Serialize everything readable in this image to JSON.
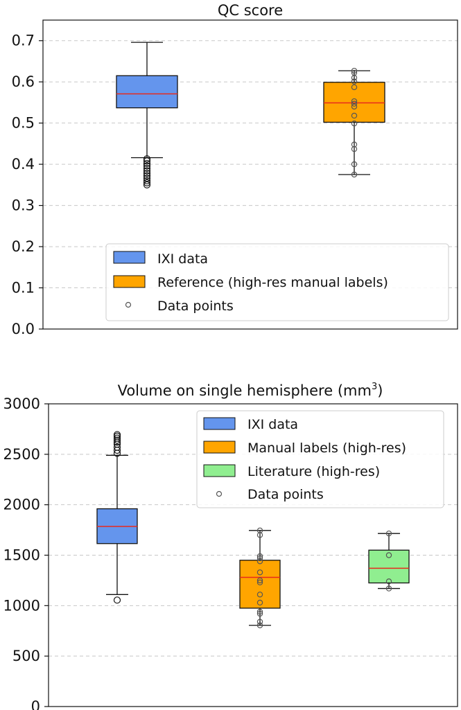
{
  "chart_data": [
    {
      "type": "box",
      "title": "QC score",
      "ylim": [
        0,
        0.75
      ],
      "yticks": [
        0.0,
        0.1,
        0.2,
        0.3,
        0.4,
        0.5,
        0.6,
        0.7
      ],
      "ytick_labels": [
        "0.0",
        "0.1",
        "0.2",
        "0.3",
        "0.4",
        "0.5",
        "0.6",
        "0.7"
      ],
      "grid": "horizontal dashed",
      "legend_position": "lower-center",
      "boxes": [
        {
          "name": "IXI data",
          "color": "#6495ed",
          "q1": 0.537,
          "median": 0.571,
          "q3": 0.615,
          "whisker_low": 0.416,
          "whisker_high": 0.696,
          "outliers": [
            0.35,
            0.355,
            0.36,
            0.366,
            0.372,
            0.378,
            0.384,
            0.39,
            0.396,
            0.402,
            0.408,
            0.413
          ],
          "points": []
        },
        {
          "name": "Reference (high-res manual labels)",
          "color": "#ffa500",
          "q1": 0.502,
          "median": 0.549,
          "q3": 0.599,
          "whisker_low": 0.375,
          "whisker_high": 0.627,
          "outliers": [],
          "points": [
            0.375,
            0.4,
            0.437,
            0.448,
            0.499,
            0.518,
            0.54,
            0.547,
            0.553,
            0.587,
            0.601,
            0.61,
            0.622,
            0.627
          ]
        }
      ],
      "legend": [
        {
          "kind": "box",
          "label": "IXI data",
          "color": "#6495ed"
        },
        {
          "kind": "box",
          "label": "Reference (high-res manual labels)",
          "color": "#ffa500"
        },
        {
          "kind": "point",
          "label": "Data points"
        }
      ]
    },
    {
      "type": "box",
      "title": "Volume on single hemisphere (mm",
      "title_superscript": "3",
      "title_suffix": ")",
      "ylim": [
        0,
        3000
      ],
      "yticks": [
        0,
        500,
        1000,
        1500,
        2000,
        2500,
        3000
      ],
      "ytick_labels": [
        "0",
        "500",
        "1000",
        "1500",
        "2000",
        "2500",
        "3000"
      ],
      "grid": "horizontal dashed",
      "legend_position": "upper-right",
      "boxes": [
        {
          "name": "IXI data",
          "color": "#6495ed",
          "q1": 1615,
          "median": 1785,
          "q3": 1960,
          "whisker_low": 1110,
          "whisker_high": 2490,
          "outliers": [
            1055,
            2510,
            2540,
            2570,
            2600,
            2620,
            2640,
            2660,
            2680,
            2695
          ],
          "points": []
        },
        {
          "name": "Manual labels (high-res)",
          "color": "#ffa500",
          "q1": 975,
          "median": 1280,
          "q3": 1450,
          "whisker_low": 805,
          "whisker_high": 1745,
          "outliers": [],
          "points": [
            805,
            840,
            920,
            940,
            1030,
            1110,
            1230,
            1250,
            1330,
            1440,
            1470,
            1490,
            1700,
            1745
          ]
        },
        {
          "name": "Literature (high-res)",
          "color": "#90ee90",
          "q1": 1225,
          "median": 1370,
          "q3": 1550,
          "whisker_low": 1170,
          "whisker_high": 1715,
          "outliers": [],
          "points": [
            1170,
            1240,
            1500,
            1715
          ]
        }
      ],
      "legend": [
        {
          "kind": "box",
          "label": "IXI data",
          "color": "#6495ed"
        },
        {
          "kind": "box",
          "label": "Manual labels (high-res)",
          "color": "#ffa500"
        },
        {
          "kind": "box",
          "label": "Literature (high-res)",
          "color": "#90ee90"
        },
        {
          "kind": "point",
          "label": "Data points"
        }
      ]
    }
  ],
  "colors": {
    "median": "#e8291c",
    "grid": "#c8c8c8",
    "axis": "#111111"
  }
}
